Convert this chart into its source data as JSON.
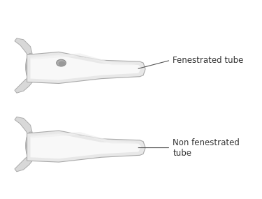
{
  "bg_color": "#ffffff",
  "tube_fill": "#e8e8e8",
  "tube_stroke": "#aaaaaa",
  "tube_highlight": "#f8f8f8",
  "flange_fill": "#d8d8d8",
  "flange_stroke": "#aaaaaa",
  "fenestration_fill": "#b0b0b0",
  "fenestration_stroke": "#888888",
  "label1": "Fenestrated tube",
  "label2": "Non fenestrated\ntube",
  "label_color": "#333333",
  "label_fontsize": 8.5,
  "fig_width": 3.75,
  "fig_height": 2.85,
  "dpi": 100
}
